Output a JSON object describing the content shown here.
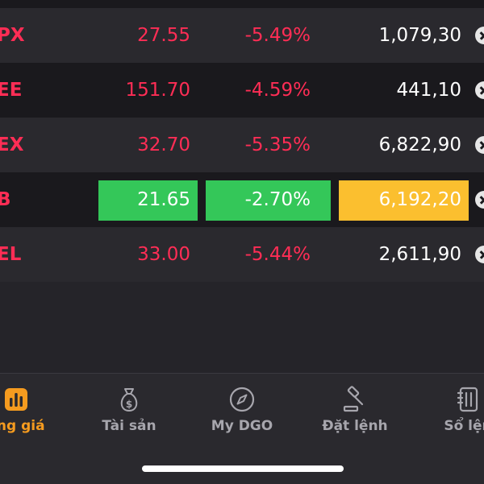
{
  "rows": [
    {
      "symbol": "PX",
      "price": "27.55",
      "change": "-5.49%",
      "volume": "1,079,30"
    },
    {
      "symbol": "EE",
      "price": "151.70",
      "change": "-4.59%",
      "volume": "441,10"
    },
    {
      "symbol": "EX",
      "price": "32.70",
      "change": "-5.35%",
      "volume": "6,822,90"
    },
    {
      "symbol": "B",
      "price": "21.65",
      "change": "-2.70%",
      "volume": "6,192,20"
    },
    {
      "symbol": "EL",
      "price": "33.00",
      "change": "-5.44%",
      "volume": "2,611,90"
    }
  ],
  "nav": {
    "items": [
      {
        "label": "ảng giá",
        "icon": "bar-chart-icon"
      },
      {
        "label": "Tài sản",
        "icon": "money-bag-icon"
      },
      {
        "label": "My DGO",
        "icon": "compass-icon"
      },
      {
        "label": "Đặt lệnh",
        "icon": "gavel-icon"
      },
      {
        "label": "Sổ lện",
        "icon": "notebook-icon"
      }
    ]
  },
  "colors": {
    "down": "#ff2d55",
    "up_flash": "#34c759",
    "volume_flash": "#fbbf2f",
    "nav_active": "#f59b1f",
    "nav_inactive": "#a7a6ad"
  }
}
